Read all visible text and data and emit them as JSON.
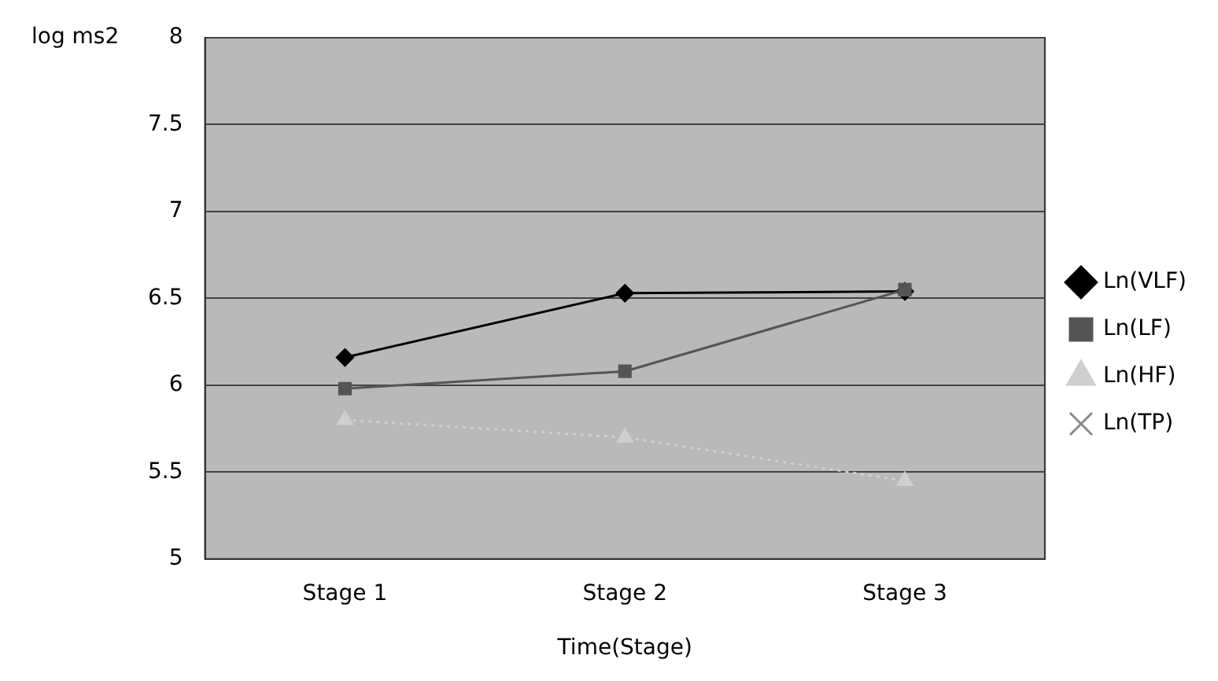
{
  "chart_data": {
    "type": "line",
    "xlabel": "Time(Stage)",
    "ylabel": "log ms2",
    "categories": [
      "Stage 1",
      "Stage 2",
      "Stage 3"
    ],
    "series": [
      {
        "name": "Ln(VLF)",
        "color": "#000000",
        "marker": "diamond",
        "line_style": "solid",
        "values": [
          6.16,
          6.53,
          6.54
        ]
      },
      {
        "name": "Ln(LF)",
        "color": "#555555",
        "marker": "square",
        "line_style": "solid",
        "values": [
          5.98,
          6.08,
          6.55
        ]
      },
      {
        "name": "Ln(HF)",
        "color": "#cfcfcf",
        "marker": "triangle",
        "line_style": "dotted",
        "values": [
          5.8,
          5.7,
          5.45
        ]
      },
      {
        "name": "Ln(TP)",
        "color": "#8a8a8a",
        "marker": "cross",
        "line_style": "dashed",
        "values": [
          null,
          null,
          null
        ]
      }
    ],
    "ylim": [
      5,
      8
    ],
    "yticks": [
      5,
      5.5,
      6,
      6.5,
      7,
      7.5,
      8
    ],
    "grid": "y",
    "legend": "right"
  }
}
